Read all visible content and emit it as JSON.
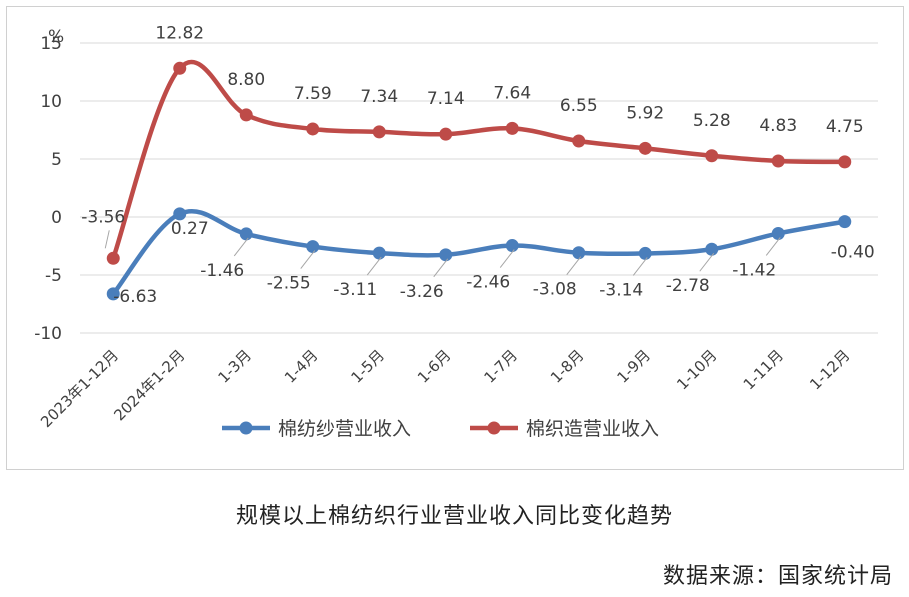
{
  "chart_data": {
    "type": "line",
    "title": "",
    "ylabel": "%",
    "ylim": [
      -10,
      15
    ],
    "yticks": [
      "-10",
      "-5",
      "0",
      "5",
      "10",
      "15"
    ],
    "categories": [
      "2023年1-12月",
      "2024年1-2月",
      "1-3月",
      "1-4月",
      "1-5月",
      "1-6月",
      "1-7月",
      "1-8月",
      "1-9月",
      "1-10月",
      "1-11月",
      "1-12月"
    ],
    "series": [
      {
        "name": "棉纺纱营业收入",
        "color": "#4a7ebb",
        "values": [
          -6.63,
          0.27,
          -1.46,
          -2.55,
          -3.11,
          -3.26,
          -2.46,
          -3.08,
          -3.14,
          -2.78,
          -1.42,
          -0.4
        ],
        "labels": [
          "-6.63",
          "0.27",
          "-1.46",
          "-2.55",
          "-3.11",
          "-3.26",
          "-2.46",
          "-3.08",
          "-3.14",
          "-2.78",
          "-1.42",
          "-0.40"
        ]
      },
      {
        "name": "棉织造营业收入",
        "color": "#be4b48",
        "values": [
          -3.56,
          12.82,
          8.8,
          7.59,
          7.34,
          7.14,
          7.64,
          6.55,
          5.92,
          5.28,
          4.83,
          4.75
        ],
        "labels": [
          "-3.56",
          "12.82",
          "8.80",
          "7.59",
          "7.34",
          "7.14",
          "7.64",
          "6.55",
          "5.92",
          "5.28",
          "4.83",
          "4.75"
        ]
      }
    ],
    "grid": true,
    "legend": "bottom"
  },
  "caption": "规模以上棉纺织行业营业收入同比变化趋势",
  "source": "数据来源：国家统计局"
}
